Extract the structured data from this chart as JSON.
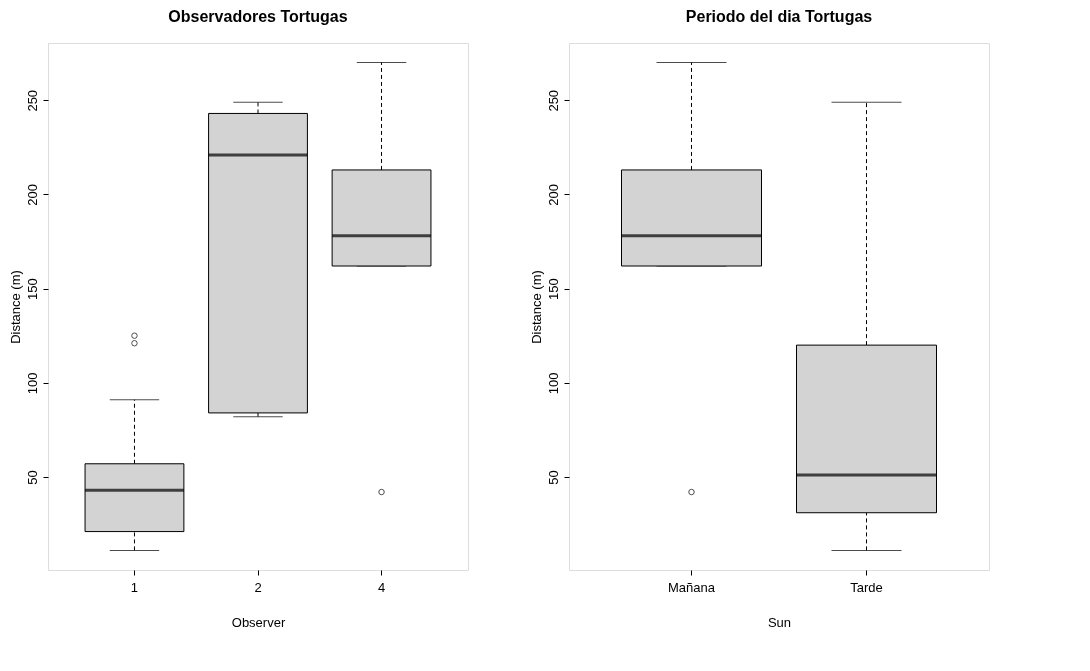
{
  "chart_data": [
    {
      "type": "box",
      "title": "Observadores Tortugas",
      "xlabel": "Observer",
      "ylabel": "Distance (m)",
      "categories": [
        "1",
        "2",
        "4"
      ],
      "boxes": [
        {
          "low": 11,
          "q1": 21,
          "median": 43,
          "q3": 57,
          "high": 91,
          "outliers": [
            121,
            125
          ]
        },
        {
          "low": 82,
          "q1": 84,
          "median": 221,
          "q3": 243,
          "high": 249
        },
        {
          "low": 162,
          "q1": 162,
          "median": 178,
          "q3": 213,
          "high": 270,
          "outliers": [
            42
          ]
        }
      ],
      "ylim": [
        0.6,
        280.4
      ],
      "yticks": [
        50,
        100,
        150,
        200,
        250
      ]
    },
    {
      "type": "box",
      "title": "Periodo del dia Tortugas",
      "xlabel": "Sun",
      "ylabel": "Distance (m)",
      "categories": [
        "Mañana",
        "Tarde"
      ],
      "boxes": [
        {
          "low": 162,
          "q1": 162,
          "median": 178,
          "q3": 213,
          "high": 270,
          "outliers": [
            42
          ]
        },
        {
          "low": 11,
          "q1": 31,
          "median": 51,
          "q3": 120,
          "high": 249
        }
      ],
      "ylim": [
        0.6,
        280.4
      ],
      "yticks": [
        50,
        100,
        150,
        200,
        250
      ]
    }
  ]
}
